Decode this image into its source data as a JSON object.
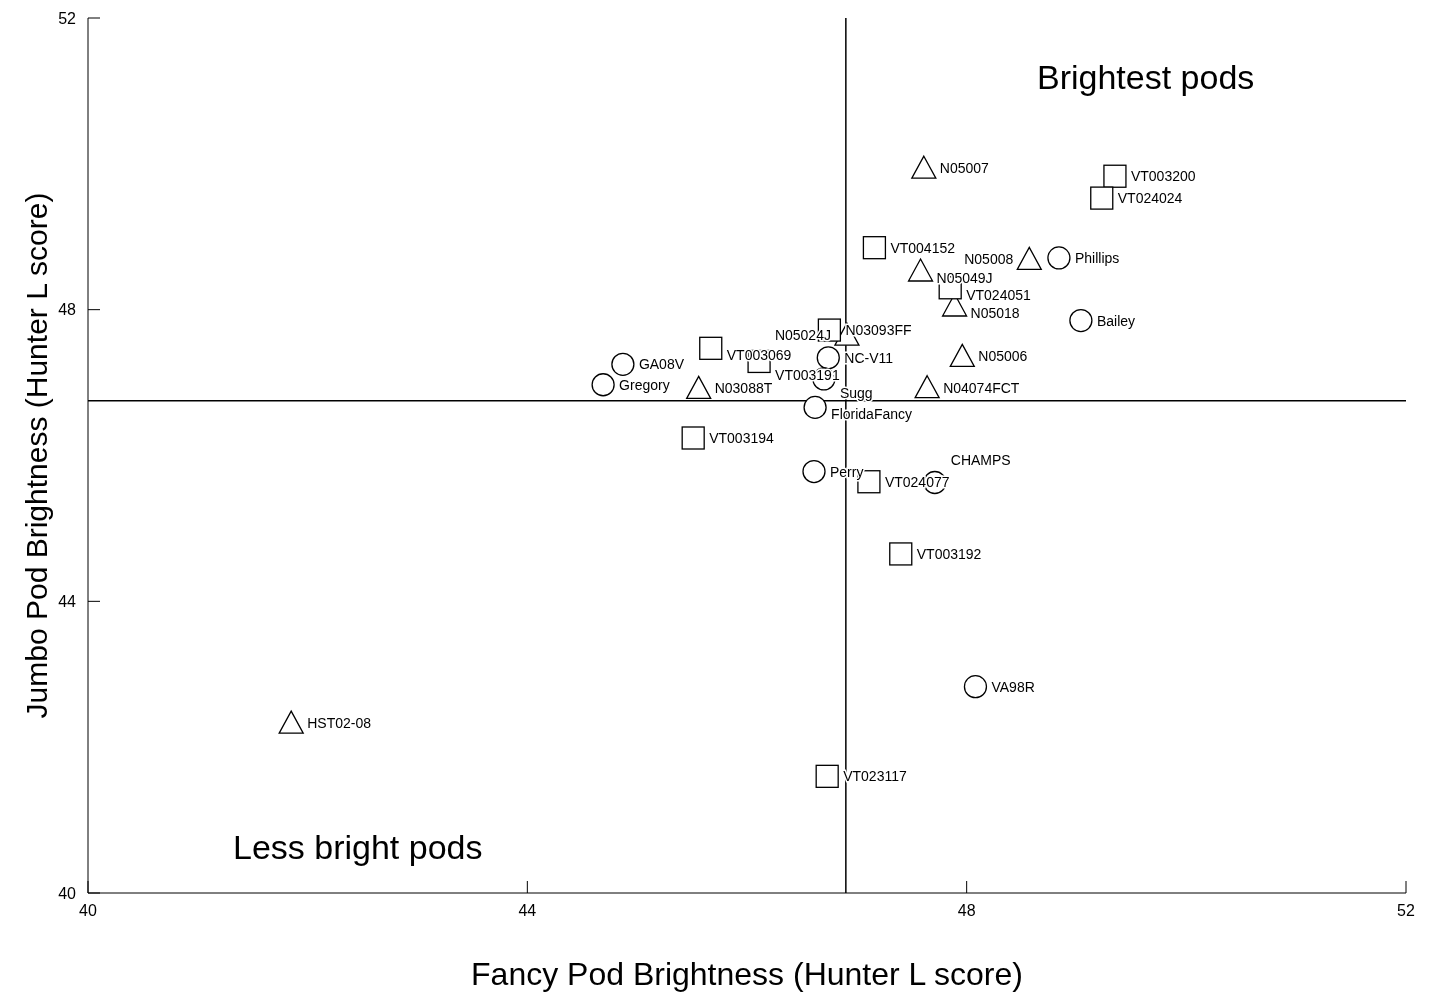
{
  "chart_data": {
    "type": "scatter",
    "xlabel": "Fancy Pod Brightness (Hunter L score)",
    "ylabel": "Jumbo Pod Brightness (Hunter L score)",
    "xlim": [
      40,
      52
    ],
    "ylim": [
      40,
      52
    ],
    "xticks": [
      40,
      44,
      48,
      52
    ],
    "yticks": [
      40,
      44,
      48,
      52
    ],
    "grid": false,
    "legend": false,
    "series": [
      {
        "marker": "triangle",
        "color": "#000000",
        "x": [
          47.61,
          47.58,
          48.57,
          47.89,
          46.91,
          47.96,
          47.64,
          45.56,
          41.85
        ],
        "values": [
          49.94,
          48.53,
          48.69,
          48.05,
          47.65,
          47.36,
          46.93,
          46.92,
          42.33
        ],
        "value_labels": [
          "N05007",
          "N05049J",
          "N05008",
          "N05018",
          "N05024J",
          "N05006",
          "N04074FCT",
          "N03088T",
          "HST02-08"
        ]
      },
      {
        "marker": "square",
        "color": "#000000",
        "x": [
          49.35,
          49.23,
          47.16,
          47.85,
          46.75,
          45.67,
          46.11,
          45.51,
          47.11,
          47.4,
          46.73
        ],
        "values": [
          49.83,
          49.53,
          48.85,
          48.3,
          47.72,
          47.47,
          47.29,
          46.24,
          45.64,
          44.65,
          41.6
        ],
        "value_labels": [
          "VT003200",
          "VT024024",
          "VT004152",
          "VT024051",
          "N03093FF",
          "VT003069",
          "VT003191",
          "VT003194",
          "VT024077",
          "VT003192",
          "VT023117"
        ]
      },
      {
        "marker": "circle",
        "color": "#000000",
        "x": [
          48.84,
          49.04,
          44.87,
          44.69,
          46.74,
          46.7,
          46.62,
          46.61,
          47.71,
          48.08
        ],
        "values": [
          48.71,
          47.85,
          47.25,
          46.97,
          47.34,
          47.05,
          46.66,
          45.78,
          45.63,
          42.83
        ],
        "value_labels": [
          "Phillips",
          "Bailey",
          "GA08V",
          "Gregory",
          "NC-V11",
          "Sugg",
          "FloridaFancy",
          "Perry",
          "CHAMPS",
          "VA98R"
        ]
      }
    ],
    "ref_lines": [
      {
        "axis": "x",
        "value": 46.9,
        "color": "#000000"
      },
      {
        "axis": "y",
        "value": 46.75,
        "color": "#000000"
      }
    ],
    "annotations": [
      "Brightest pods",
      "Less bright pods"
    ]
  }
}
